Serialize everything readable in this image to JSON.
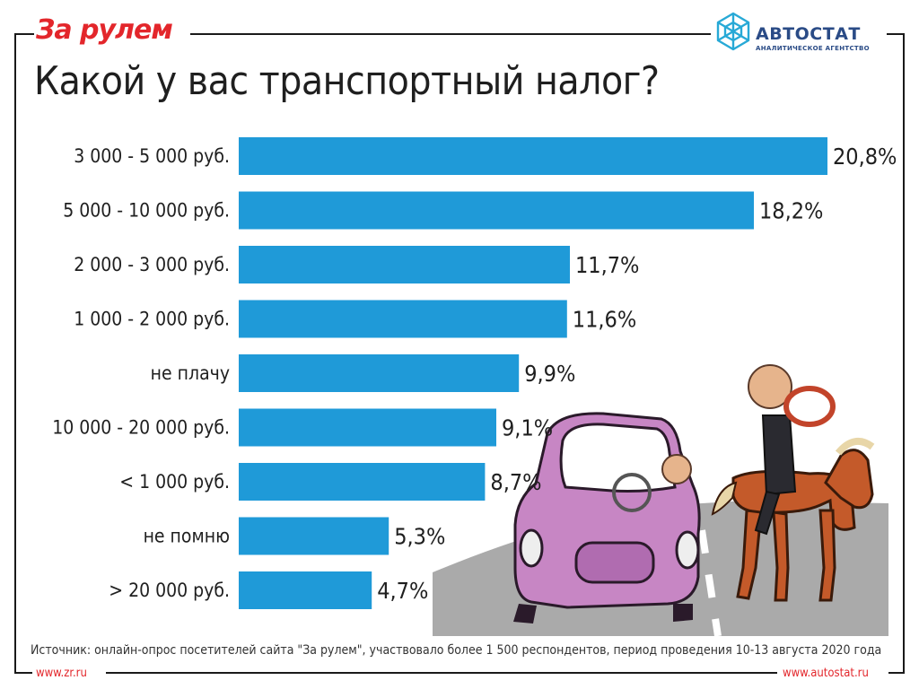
{
  "header": {
    "brand_left": "За рулем",
    "brand_right": "АВТОСТАТ",
    "brand_right_sub": "АНАЛИТИЧЕСКОЕ АГЕНТСТВО",
    "title": "Какой у вас транспортный налог?"
  },
  "footer": {
    "source": "Источник: онлайн-опрос посетителей сайта \"За рулем\", участвовало более 1 500 респондентов, период проведения 10-13 августа 2020 года",
    "link_left": "www.zr.ru",
    "link_right": "www.autostat.ru"
  },
  "colors": {
    "bar": "#1f9ad8",
    "brand_red": "#e3262b",
    "brand_blue": "#2a4b86"
  },
  "chart_data": {
    "type": "bar",
    "orientation": "horizontal",
    "title": "Какой у вас транспортный налог?",
    "categories": [
      "3 000 - 5 000 руб.",
      "5 000 - 10 000 руб.",
      "2 000 - 3 000 руб.",
      "1 000 - 2 000 руб.",
      "не плачу",
      "10 000 - 20 000 руб.",
      "< 1 000 руб.",
      "не помню",
      "> 20 000 руб."
    ],
    "values": [
      20.8,
      18.2,
      11.7,
      11.6,
      9.9,
      9.1,
      8.7,
      5.3,
      4.7
    ],
    "value_labels": [
      "20,8%",
      "18,2%",
      "11,7%",
      "11,6%",
      "9,9%",
      "9,1%",
      "8,7%",
      "5,3%",
      "4,7%"
    ],
    "unit": "%",
    "xlim": [
      0,
      20.8
    ],
    "grid": false,
    "legend": "none"
  }
}
